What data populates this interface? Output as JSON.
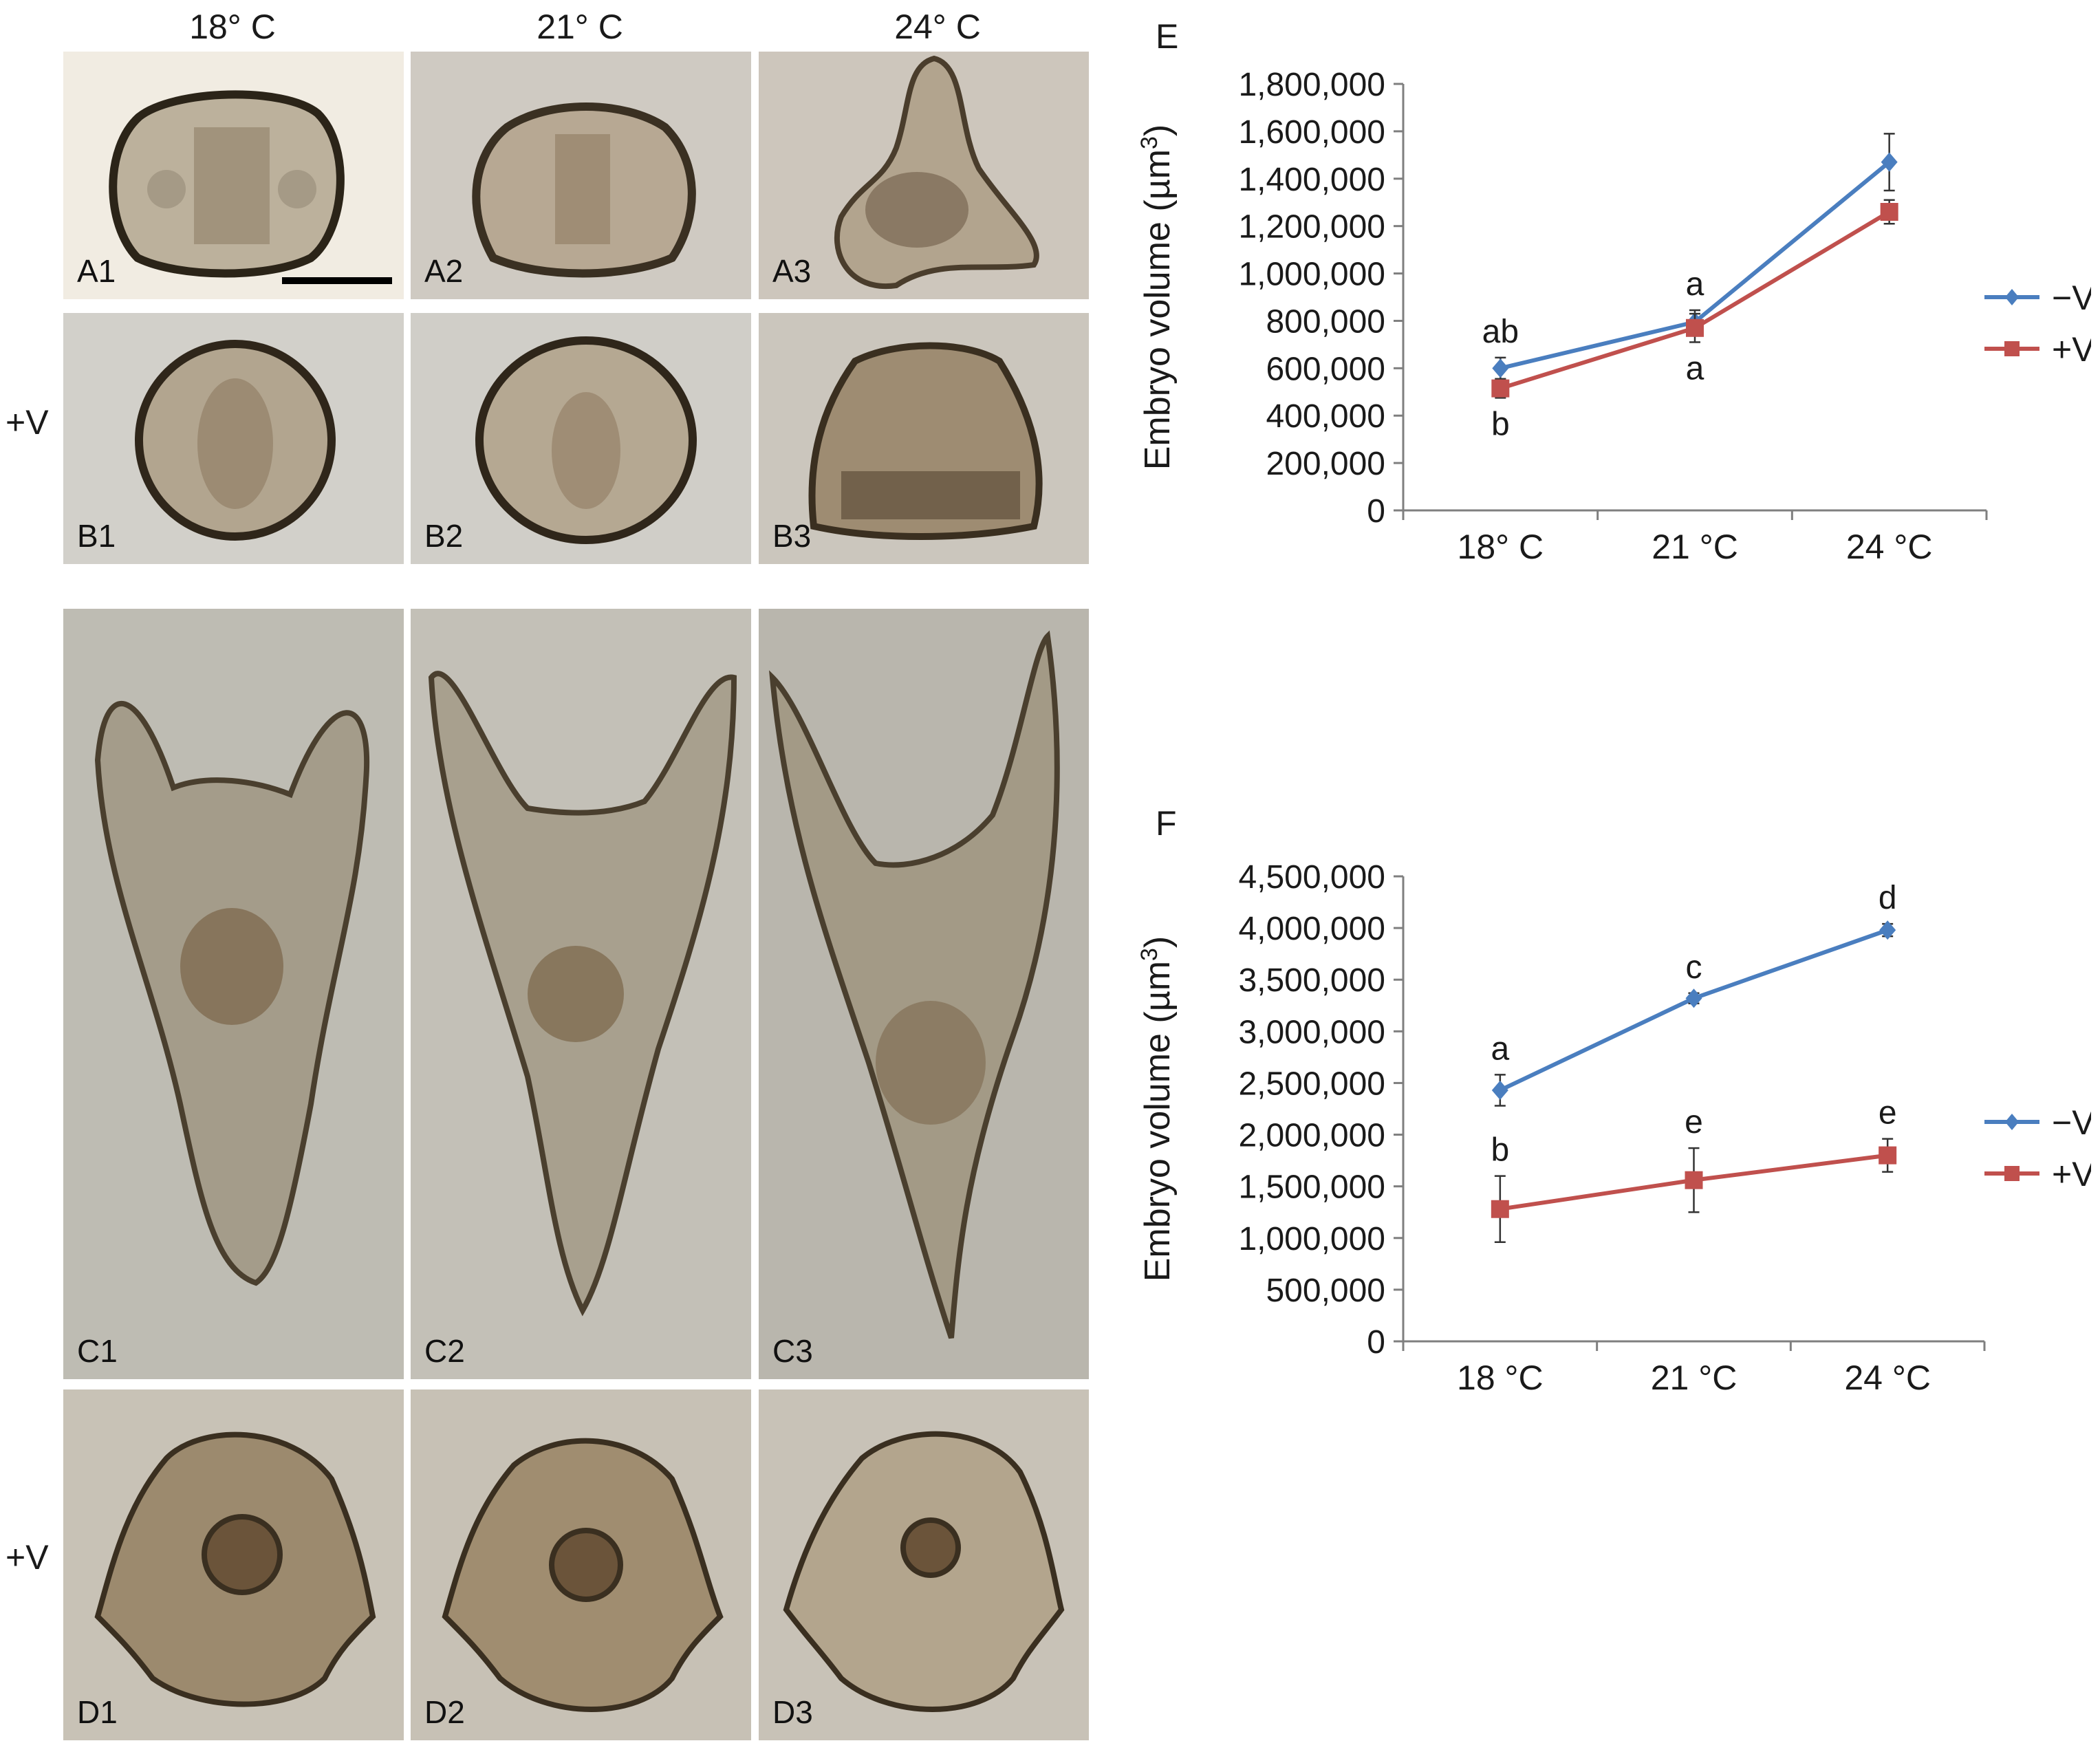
{
  "column_headers": [
    "18° C",
    "21° C",
    "24° C"
  ],
  "row_headers": {
    "B": "+V",
    "D": "+V"
  },
  "panels": {
    "A": [
      "A1",
      "A2",
      "A3"
    ],
    "B": [
      "B1",
      "B2",
      "B3"
    ],
    "C": [
      "C1",
      "C2",
      "C3"
    ],
    "D": [
      "D1",
      "D2",
      "D3"
    ]
  },
  "colors": {
    "minusV": "#4a7ebf",
    "plusV": "#c0504d",
    "axis": "#7f7f7f",
    "text": "#1a1a1a"
  },
  "chart_data": [
    {
      "panel": "E",
      "type": "line",
      "categories": [
        "18° C",
        "21 °C",
        "24 °C"
      ],
      "ylabel": "Embryo volume (µm³)",
      "ylabel_main": "Embryo volume (µm",
      "ylabel_sup": "3",
      "ylabel_close": ")",
      "ylim": [
        0,
        1800000
      ],
      "yticks": [
        0,
        200000,
        400000,
        600000,
        800000,
        1000000,
        1200000,
        1400000,
        1600000,
        1800000
      ],
      "ytick_labels": [
        "0",
        "200,000",
        "400,000",
        "600,000",
        "800,000",
        "1,000,000",
        "1,200,000",
        "1,400,000",
        "1,600,000",
        "1,800,000"
      ],
      "legend_position": "right",
      "series": [
        {
          "name": "−V",
          "marker": "diamond",
          "color": "#4a7ebf",
          "values": [
            600000,
            795000,
            1470000
          ],
          "errors": [
            45000,
            50000,
            120000
          ],
          "labels": [
            "ab",
            "a",
            ""
          ],
          "label_side": [
            "above",
            "above",
            "above"
          ]
        },
        {
          "name": "+V",
          "marker": "square",
          "color": "#c0504d",
          "values": [
            515000,
            770000,
            1260000
          ],
          "errors": [
            40000,
            60000,
            50000
          ],
          "labels": [
            "b",
            "a",
            ""
          ],
          "label_side": [
            "below",
            "below",
            "below"
          ]
        }
      ]
    },
    {
      "panel": "F",
      "type": "line",
      "categories": [
        "18 °C",
        "21 °C",
        "24 °C"
      ],
      "ylabel": "Embryo volume (µm³)",
      "ylabel_main": "Embryo volume (µm",
      "ylabel_sup": "3",
      "ylabel_close": ")",
      "ylim": [
        0,
        4500000
      ],
      "yticks": [
        0,
        500000,
        1000000,
        1500000,
        2000000,
        2500000,
        3000000,
        3500000,
        4000000,
        4500000
      ],
      "ytick_labels": [
        "0",
        "500,000",
        "1,000,000",
        "1,500,000",
        "2,000,000",
        "2,500,000",
        "3,000,000",
        "3,500,000",
        "4,000,000",
        "4,500,000"
      ],
      "legend_position": "right",
      "series": [
        {
          "name": "−V",
          "marker": "diamond",
          "color": "#4a7ebf",
          "values": [
            2430000,
            3320000,
            3980000
          ],
          "errors": [
            150000,
            50000,
            60000
          ],
          "labels": [
            "a",
            "c",
            "d"
          ],
          "label_side": [
            "above",
            "above",
            "above"
          ]
        },
        {
          "name": "+V",
          "marker": "square",
          "color": "#c0504d",
          "values": [
            1280000,
            1560000,
            1800000
          ],
          "errors": [
            320000,
            310000,
            160000
          ],
          "labels": [
            "b",
            "e",
            "e"
          ],
          "label_side": [
            "above",
            "above",
            "above"
          ]
        }
      ]
    }
  ]
}
